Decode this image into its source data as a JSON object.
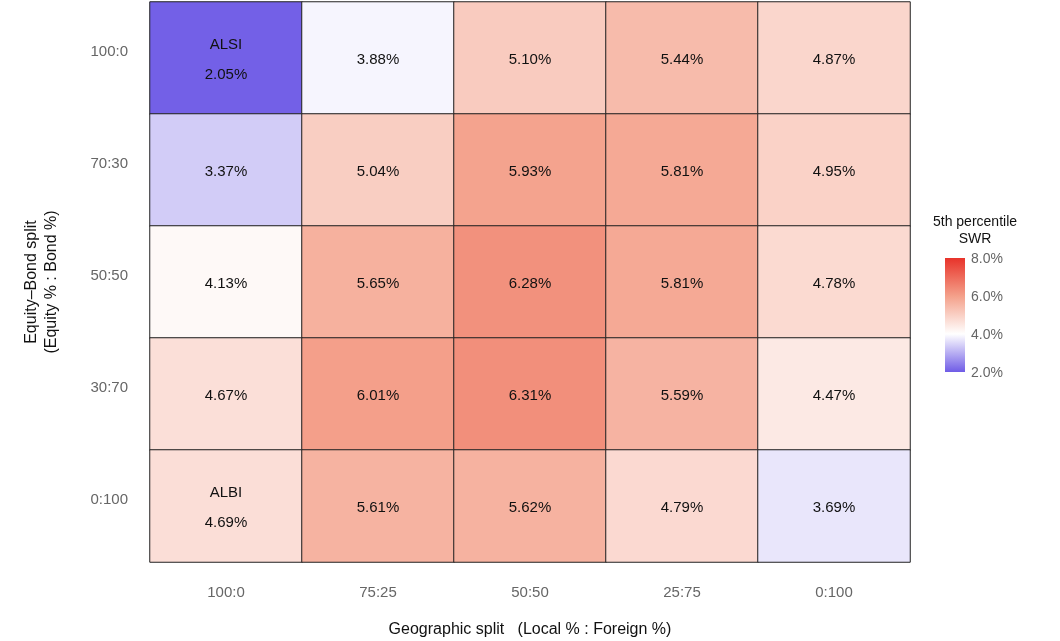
{
  "chart_data": {
    "type": "heatmap",
    "xlabel": "Geographic split   (Local % : Foreign %)",
    "ylabel": "Equity–Bond split\n(Equity % : Bond %)",
    "clabel": "5th percentile\nSWR",
    "categories": [
      "100:0",
      "75:25",
      "50:50",
      "25:75",
      "0:100"
    ],
    "y_categories": [
      "100:0",
      "70:30",
      "50:50",
      "30:70",
      "0:100"
    ],
    "cells": [
      [
        2.05,
        3.88,
        5.1,
        5.44,
        4.87
      ],
      [
        3.37,
        5.04,
        5.93,
        5.81,
        4.95
      ],
      [
        4.13,
        5.65,
        6.28,
        5.81,
        4.78
      ],
      [
        4.67,
        6.01,
        6.31,
        5.59,
        4.47
      ],
      [
        4.69,
        5.61,
        5.62,
        4.79,
        3.69
      ]
    ],
    "cell_labels": [
      [
        "ALSI\n2.05%",
        "3.88%",
        "5.10%",
        "5.44%",
        "4.87%"
      ],
      [
        "3.37%",
        "5.04%",
        "5.93%",
        "5.81%",
        "4.95%"
      ],
      [
        "4.13%",
        "5.65%",
        "6.28%",
        "5.81%",
        "4.78%"
      ],
      [
        "4.67%",
        "6.01%",
        "6.31%",
        "5.59%",
        "4.47%"
      ],
      [
        "ALBI\n4.69%",
        "5.61%",
        "5.62%",
        "4.79%",
        "3.69%"
      ]
    ],
    "clim": [
      2,
      8
    ],
    "cticks": [
      {
        "value": 2,
        "label": "2.0%"
      },
      {
        "value": 4,
        "label": "4.0%"
      },
      {
        "value": 6,
        "label": "6.0%"
      },
      {
        "value": 8,
        "label": "8.0%"
      }
    ]
  }
}
